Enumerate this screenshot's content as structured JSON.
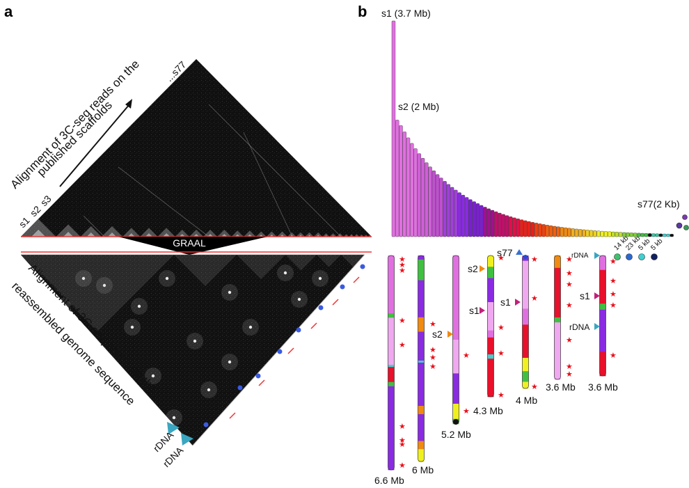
{
  "panel_a": {
    "letter": "a",
    "top_caption_line1": "Alignment of 3C-seq reads on the",
    "top_caption_line2": "published scaffolds",
    "bottom_caption_line1": "Alignment of 3C-seq reads on the",
    "bottom_caption_line2": "reassembled genome sequence",
    "scaffold_labels": [
      "s1",
      "s2",
      "s3"
    ],
    "last_scaffold_label": "...s77",
    "tool_label": "GRAAL",
    "rdna_labels": [
      "rDNA",
      "rDNA"
    ]
  },
  "panel_b": {
    "letter": "b",
    "s1_label": "s1 (3.7 Mb)",
    "s2_label": "s2 (2 Mb)",
    "s77_label": "s77(2 Kb)",
    "scaffold_sizes_bp_first": [
      3700000,
      2000000
    ],
    "scaffold_count": 77,
    "small_contig_labels": [
      "14 kb",
      "23 kb",
      "5 kb",
      "5 kb"
    ],
    "chromosomes": [
      {
        "size": "6.6 Mb"
      },
      {
        "size": "6 Mb"
      },
      {
        "size": "5.2 Mb",
        "markers": [
          "s2"
        ]
      },
      {
        "size": "4.3 Mb",
        "markers": [
          "s2",
          "s1"
        ]
      },
      {
        "size": "4 Mb",
        "markers": [
          "s77",
          "s1"
        ]
      },
      {
        "size": "3.6 Mb",
        "markers": [
          "rDNA"
        ]
      },
      {
        "size": "3.6 Mb",
        "markers": [
          "s1",
          "rDNA"
        ]
      }
    ],
    "colors": {
      "pink": "#e070e0",
      "light_pink": "#f0a8f0",
      "purple": "#8a2be2",
      "red": "#e8102a",
      "orange": "#f08a10",
      "yellow": "#f0f020",
      "green": "#40c040",
      "cyan": "#40d0d0",
      "star": "#e8101a",
      "arrow_blue": "#3aa6c0"
    }
  }
}
